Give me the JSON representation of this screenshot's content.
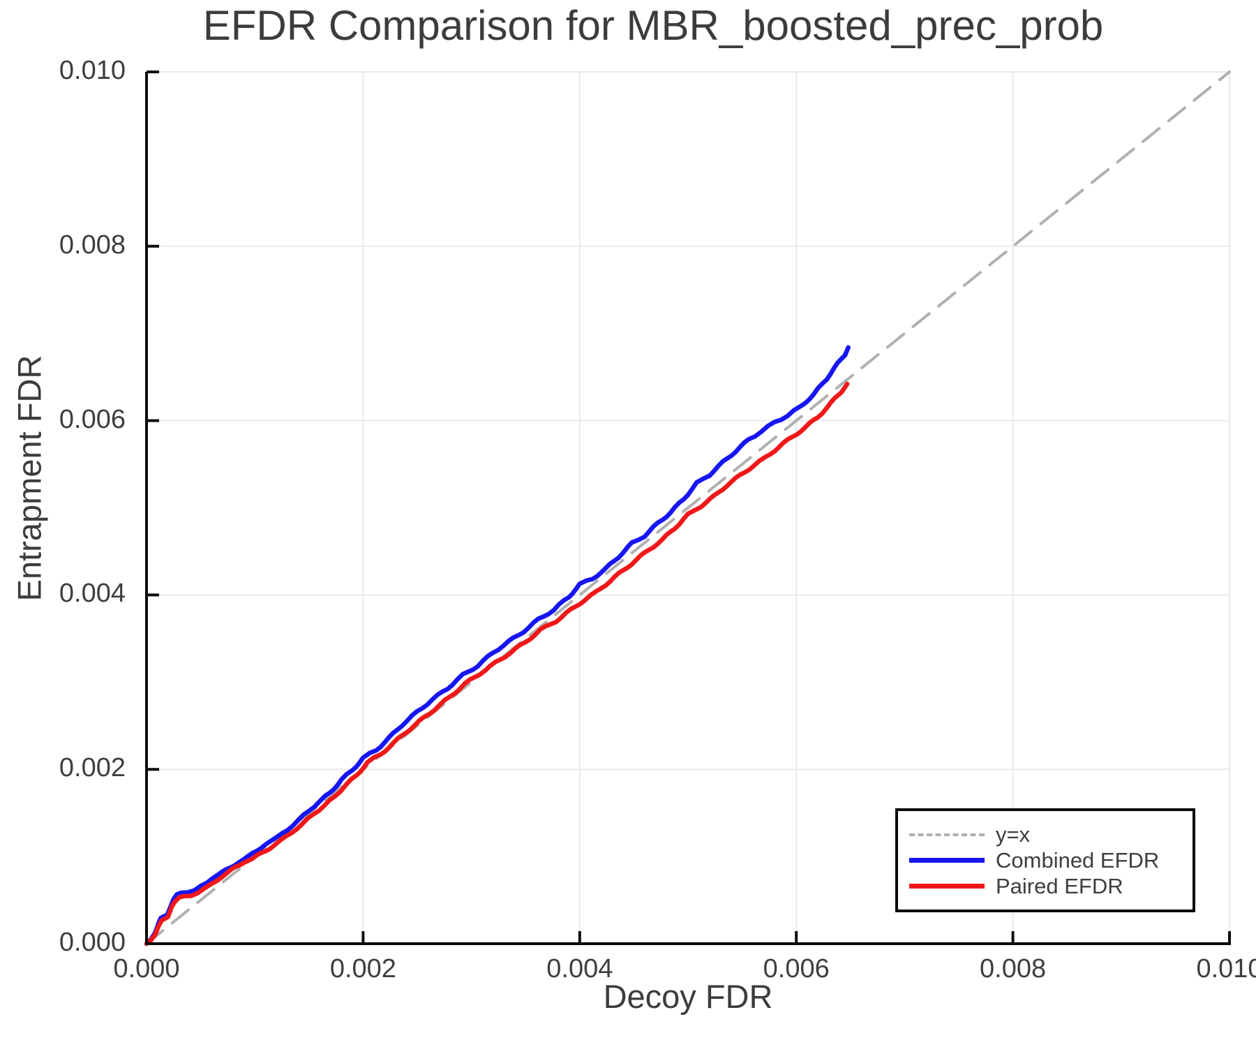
{
  "title": "EFDR Comparison for MBR_boosted_prec_prob",
  "axes": {
    "xlabel": "Decoy FDR",
    "ylabel": "Entrapment FDR",
    "xticks": [
      "0.000",
      "0.002",
      "0.004",
      "0.006",
      "0.008",
      "0.010"
    ],
    "yticks": [
      "0.000",
      "0.002",
      "0.004",
      "0.006",
      "0.008",
      "0.010"
    ],
    "xlim": [
      0,
      0.01
    ],
    "ylim": [
      0,
      0.01
    ]
  },
  "legend": {
    "items": [
      {
        "label": "y=x",
        "style": "dashed",
        "color": "#b0b0b0"
      },
      {
        "label": "Combined EFDR",
        "style": "solid",
        "color": "#1616f2"
      },
      {
        "label": "Paired EFDR",
        "style": "solid",
        "color": "#f01818"
      }
    ]
  },
  "colors": {
    "grid": "#e9e9e9",
    "axis": "#0a0a0a",
    "text": "#3e3e3e",
    "identity": "#b0b0b0",
    "combined": "#1616f2",
    "paired": "#f01818"
  },
  "chart_data": {
    "type": "line",
    "title": "EFDR Comparison for MBR_boosted_prec_prob",
    "xlabel": "Decoy FDR",
    "ylabel": "Entrapment FDR",
    "xlim": [
      0,
      0.01
    ],
    "ylim": [
      0,
      0.01
    ],
    "grid": true,
    "legend_position": "lower right",
    "series": [
      {
        "name": "y=x",
        "style": "dashed",
        "color": "#b0b0b0",
        "width": 4,
        "points": [
          [
            0,
            0
          ],
          [
            0.01,
            0.01
          ]
        ]
      },
      {
        "name": "Combined EFDR",
        "style": "solid",
        "color": "#1616f2",
        "width": 6.5,
        "points": [
          [
            0.0,
            0.0
          ],
          [
            4e-05,
            6e-05
          ],
          [
            8e-05,
            0.00013
          ],
          [
            0.00011,
            0.00022
          ],
          [
            0.00013,
            0.00029
          ],
          [
            0.00016,
            0.00032
          ],
          [
            0.00019,
            0.00034
          ],
          [
            0.00022,
            0.00042
          ],
          [
            0.00025,
            0.0005
          ],
          [
            0.00028,
            0.00056
          ],
          [
            0.00032,
            0.00059
          ],
          [
            0.00038,
            0.0006
          ],
          [
            0.00044,
            0.00061
          ],
          [
            0.0005,
            0.00065
          ],
          [
            0.00056,
            0.0007
          ],
          [
            0.00062,
            0.00077
          ],
          [
            0.0007,
            0.00082
          ],
          [
            0.00078,
            0.00087
          ],
          [
            0.00086,
            0.00095
          ],
          [
            0.00094,
            0.001
          ],
          [
            0.00102,
            0.00106
          ],
          [
            0.0011,
            0.00115
          ],
          [
            0.0012,
            0.00121
          ],
          [
            0.0013,
            0.00131
          ],
          [
            0.0014,
            0.00141
          ],
          [
            0.0015,
            0.00153
          ],
          [
            0.0016,
            0.00163
          ],
          [
            0.0017,
            0.00174
          ],
          [
            0.0018,
            0.00188
          ],
          [
            0.0019,
            0.00199
          ],
          [
            0.002,
            0.00213
          ],
          [
            0.00212,
            0.00222
          ],
          [
            0.00224,
            0.00236
          ],
          [
            0.00236,
            0.00251
          ],
          [
            0.0025,
            0.00266
          ],
          [
            0.00264,
            0.0028
          ],
          [
            0.00278,
            0.00293
          ],
          [
            0.00292,
            0.00308
          ],
          [
            0.00306,
            0.00319
          ],
          [
            0.0032,
            0.00334
          ],
          [
            0.00334,
            0.00346
          ],
          [
            0.00348,
            0.00358
          ],
          [
            0.00362,
            0.00372
          ],
          [
            0.00376,
            0.00383
          ],
          [
            0.0039,
            0.00398
          ],
          [
            0.004,
            0.00412
          ],
          [
            0.00412,
            0.00419
          ],
          [
            0.00424,
            0.0043
          ],
          [
            0.00436,
            0.00444
          ],
          [
            0.00448,
            0.00459
          ],
          [
            0.0046,
            0.00468
          ],
          [
            0.00472,
            0.00482
          ],
          [
            0.00484,
            0.00495
          ],
          [
            0.00496,
            0.0051
          ],
          [
            0.00508,
            0.00528
          ],
          [
            0.0052,
            0.00538
          ],
          [
            0.00532,
            0.00552
          ],
          [
            0.00544,
            0.00565
          ],
          [
            0.00556,
            0.00578
          ],
          [
            0.00568,
            0.00588
          ],
          [
            0.0058,
            0.00598
          ],
          [
            0.00592,
            0.00606
          ],
          [
            0.00604,
            0.00616
          ],
          [
            0.00616,
            0.0063
          ],
          [
            0.00628,
            0.00648
          ],
          [
            0.00638,
            0.00665
          ],
          [
            0.00645,
            0.00676
          ],
          [
            0.00648,
            0.00684
          ]
        ]
      },
      {
        "name": "Paired EFDR",
        "style": "solid",
        "color": "#f01818",
        "width": 6.5,
        "points": [
          [
            0.0,
            0.0
          ],
          [
            4e-05,
            5e-05
          ],
          [
            8e-05,
            0.00011
          ],
          [
            0.00011,
            0.00019
          ],
          [
            0.00014,
            0.00026
          ],
          [
            0.00017,
            0.00029
          ],
          [
            0.0002,
            0.00032
          ],
          [
            0.00023,
            0.00042
          ],
          [
            0.00026,
            0.00047
          ],
          [
            0.0003,
            0.00052
          ],
          [
            0.00035,
            0.00055
          ],
          [
            0.00041,
            0.00056
          ],
          [
            0.00047,
            0.00058
          ],
          [
            0.00053,
            0.00062
          ],
          [
            0.00059,
            0.00068
          ],
          [
            0.00066,
            0.00074
          ],
          [
            0.00074,
            0.0008
          ],
          [
            0.00082,
            0.00088
          ],
          [
            0.0009,
            0.00094
          ],
          [
            0.00098,
            0.00097
          ],
          [
            0.00106,
            0.00104
          ],
          [
            0.00114,
            0.0011
          ],
          [
            0.00124,
            0.00118
          ],
          [
            0.00134,
            0.00128
          ],
          [
            0.00144,
            0.00137
          ],
          [
            0.00154,
            0.00149
          ],
          [
            0.00164,
            0.00158
          ],
          [
            0.00174,
            0.00169
          ],
          [
            0.00184,
            0.00182
          ],
          [
            0.00194,
            0.00193
          ],
          [
            0.00204,
            0.00208
          ],
          [
            0.00216,
            0.00217
          ],
          [
            0.00228,
            0.0023
          ],
          [
            0.0024,
            0.00243
          ],
          [
            0.00252,
            0.00255
          ],
          [
            0.00266,
            0.00269
          ],
          [
            0.0028,
            0.00283
          ],
          [
            0.00294,
            0.00298
          ],
          [
            0.00308,
            0.0031
          ],
          [
            0.00322,
            0.00322
          ],
          [
            0.00336,
            0.00334
          ],
          [
            0.0035,
            0.00346
          ],
          [
            0.00364,
            0.0036
          ],
          [
            0.00378,
            0.0037
          ],
          [
            0.00392,
            0.00383
          ],
          [
            0.00404,
            0.00394
          ],
          [
            0.00416,
            0.00404
          ],
          [
            0.00428,
            0.00416
          ],
          [
            0.0044,
            0.00428
          ],
          [
            0.00452,
            0.0044
          ],
          [
            0.00464,
            0.00452
          ],
          [
            0.00476,
            0.00463
          ],
          [
            0.00488,
            0.00477
          ],
          [
            0.005,
            0.00492
          ],
          [
            0.00512,
            0.00502
          ],
          [
            0.00524,
            0.00513
          ],
          [
            0.00536,
            0.00526
          ],
          [
            0.00548,
            0.00537
          ],
          [
            0.0056,
            0.00548
          ],
          [
            0.00572,
            0.00558
          ],
          [
            0.00584,
            0.0057
          ],
          [
            0.00596,
            0.00581
          ],
          [
            0.00608,
            0.00592
          ],
          [
            0.0062,
            0.00604
          ],
          [
            0.00632,
            0.0062
          ],
          [
            0.00642,
            0.00634
          ],
          [
            0.00647,
            0.00642
          ]
        ]
      }
    ]
  }
}
